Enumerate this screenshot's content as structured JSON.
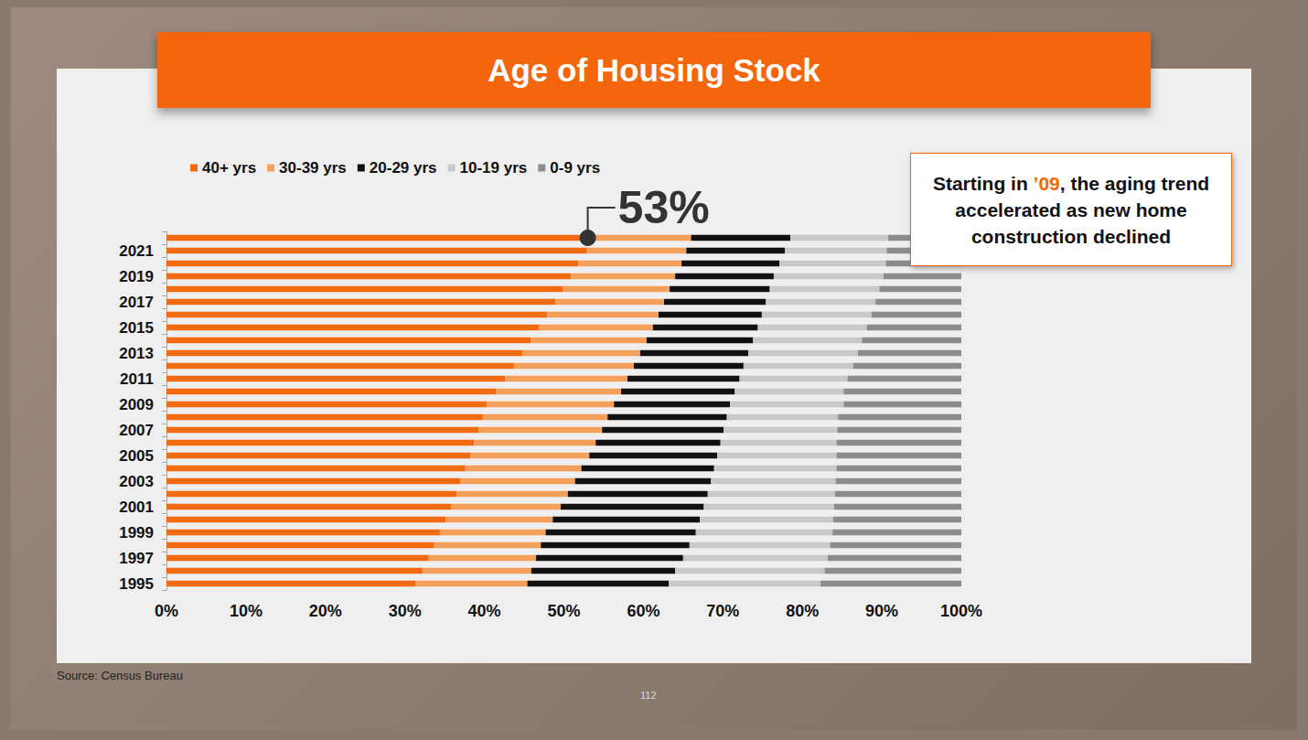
{
  "chart_data": {
    "type": "bar",
    "title": "Age of Housing Stock",
    "orientation": "horizontal",
    "stacked": true,
    "legend": "top",
    "grid": false,
    "categories": [
      "1995",
      null,
      "1997",
      null,
      "1999",
      null,
      "2001",
      null,
      "2003",
      null,
      "2005",
      null,
      "2007",
      null,
      "2009",
      null,
      "2011",
      null,
      "2013",
      null,
      "2015",
      null,
      "2017",
      null,
      "2019",
      null,
      "2021",
      null
    ],
    "series": [
      {
        "name": "40+ yrs",
        "color": "#f26a0f",
        "values": [
          31.3,
          32.2,
          33.0,
          33.7,
          34.4,
          35.1,
          35.8,
          36.5,
          37.0,
          37.6,
          38.2,
          38.7,
          39.3,
          39.8,
          40.3,
          41.5,
          42.6,
          43.7,
          44.8,
          45.8,
          46.9,
          47.9,
          48.9,
          49.9,
          50.9,
          51.8,
          52.9,
          53.2
        ]
      },
      {
        "name": "30-39 yrs",
        "color": "#f5a05a",
        "values": [
          14.1,
          13.7,
          13.5,
          13.4,
          13.3,
          13.5,
          13.8,
          14.0,
          14.4,
          14.6,
          15.0,
          15.3,
          15.5,
          15.7,
          16.0,
          15.7,
          15.4,
          15.1,
          14.8,
          14.6,
          14.3,
          14.0,
          13.7,
          13.4,
          13.1,
          13.0,
          12.5,
          12.8
        ]
      },
      {
        "name": "20-29 yrs",
        "color": "#111111",
        "values": [
          17.8,
          18.1,
          18.5,
          18.7,
          18.9,
          18.5,
          18.0,
          17.6,
          17.1,
          16.7,
          16.1,
          15.7,
          15.3,
          15.0,
          14.6,
          14.3,
          14.1,
          13.8,
          13.6,
          13.4,
          13.2,
          13.0,
          12.8,
          12.6,
          12.4,
          12.3,
          12.4,
          12.5
        ]
      },
      {
        "name": "10-19 yrs",
        "color": "#c8c8c8",
        "values": [
          19.1,
          18.8,
          18.2,
          17.7,
          17.2,
          16.8,
          16.4,
          16.0,
          15.7,
          15.4,
          15.0,
          14.6,
          14.3,
          14.0,
          14.3,
          13.7,
          13.6,
          13.8,
          13.8,
          13.7,
          13.7,
          13.8,
          13.8,
          13.8,
          13.8,
          13.4,
          12.8,
          12.3
        ]
      },
      {
        "name": "0-9 yrs",
        "color": "#8c8c8c",
        "values": [
          17.7,
          17.2,
          16.8,
          16.5,
          16.2,
          16.1,
          16.0,
          15.9,
          15.8,
          15.7,
          15.7,
          15.7,
          15.6,
          15.5,
          14.8,
          14.8,
          14.3,
          13.6,
          13.0,
          12.5,
          11.9,
          11.3,
          10.8,
          10.3,
          9.8,
          9.5,
          9.4,
          9.2
        ]
      }
    ],
    "xlim": [
      0,
      100
    ],
    "xticks": [
      {
        "value": 0,
        "label": "0%"
      },
      {
        "value": 10,
        "label": "10%"
      },
      {
        "value": 20,
        "label": "20%"
      },
      {
        "value": 30,
        "label": "30%"
      },
      {
        "value": 40,
        "label": "40%"
      },
      {
        "value": 50,
        "label": "50%"
      },
      {
        "value": 60,
        "label": "60%"
      },
      {
        "value": 70,
        "label": "70%"
      },
      {
        "value": 80,
        "label": "80%"
      },
      {
        "value": 90,
        "label": "90%"
      },
      {
        "value": 100,
        "label": "100%"
      }
    ],
    "callout": {
      "text": "53%",
      "value": 53
    },
    "note": {
      "before": "Starting in ",
      "highlight": "’09",
      "after": ", the aging trend accelerated as new home construction declined"
    },
    "source": "Source: Census Bureau",
    "page_number": "112"
  }
}
